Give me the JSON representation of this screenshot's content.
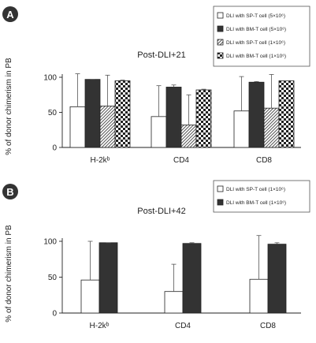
{
  "panels": [
    {
      "letter": "A",
      "title": "Post-DLI+21",
      "legend": [
        {
          "label": "DLI with SP-T cell (5×10⁶)",
          "pattern": "white"
        },
        {
          "label": "DLI with BM-T cell (5×10⁶)",
          "pattern": "black"
        },
        {
          "label": "DLI with SP-T cell (1×10⁶)",
          "pattern": "hatch"
        },
        {
          "label": "DLI with BM-T cell (1×10⁶)",
          "pattern": "checker"
        }
      ]
    },
    {
      "letter": "B",
      "title": "Post-DLI+42",
      "legend": [
        {
          "label": "DLI with SP-T cell (1×10⁶)",
          "pattern": "white"
        },
        {
          "label": "DLI with BM-T cell (1×10⁶)",
          "pattern": "black"
        }
      ]
    }
  ],
  "chart_data": [
    {
      "type": "bar",
      "title": "Post-DLI+21",
      "ylabel": "% of donor chimerism in PB",
      "categories": [
        "H-2kᵇ",
        "CD4",
        "CD8"
      ],
      "ylim": [
        0,
        100
      ],
      "yticks": [
        0,
        50,
        100
      ],
      "series": [
        {
          "name": "DLI with SP-T cell (5×10⁶)",
          "values": [
            58,
            44,
            52
          ],
          "errors": [
            47,
            44,
            49
          ],
          "pattern": "white"
        },
        {
          "name": "DLI with BM-T cell (5×10⁶)",
          "values": [
            97,
            86,
            93
          ],
          "errors": [
            0,
            3,
            1
          ],
          "pattern": "black"
        },
        {
          "name": "DLI with SP-T cell (1×10⁶)",
          "values": [
            59,
            32,
            56
          ],
          "errors": [
            44,
            43,
            48
          ],
          "pattern": "hatch"
        },
        {
          "name": "DLI with BM-T cell (1×10⁶)",
          "values": [
            95,
            82,
            95
          ],
          "errors": [
            1,
            1,
            0
          ],
          "pattern": "checker"
        }
      ]
    },
    {
      "type": "bar",
      "title": "Post-DLI+42",
      "ylabel": "% of donor chimerism in PB",
      "categories": [
        "H-2kᵇ",
        "CD4",
        "CD8"
      ],
      "ylim": [
        0,
        100
      ],
      "yticks": [
        0,
        50,
        100
      ],
      "series": [
        {
          "name": "DLI with SP-T cell (1×10⁶)",
          "values": [
            46,
            30,
            47
          ],
          "errors": [
            54,
            38,
            61
          ],
          "pattern": "white"
        },
        {
          "name": "DLI with BM-T cell (1×10⁶)",
          "values": [
            98,
            97,
            96
          ],
          "errors": [
            0,
            1,
            2
          ],
          "pattern": "black"
        }
      ]
    }
  ]
}
